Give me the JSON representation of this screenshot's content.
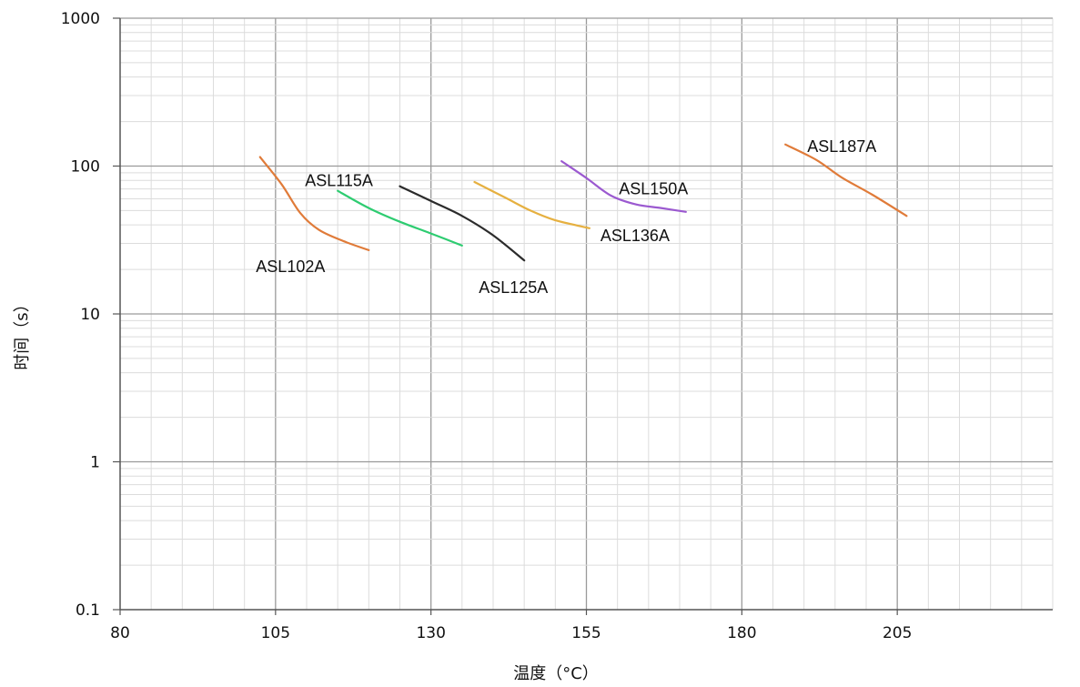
{
  "chart_data": {
    "type": "line",
    "xlabel": "温度（°C）",
    "ylabel": "时间（s）",
    "xlim": [
      80,
      230
    ],
    "ylim": [
      0.1,
      1000
    ],
    "yscale": "log",
    "grid": true,
    "x_ticks": [
      "80",
      "105",
      "130",
      "155",
      "180",
      "205"
    ],
    "y_ticks": [
      "0.1",
      "1",
      "10",
      "100",
      "1000"
    ],
    "series": [
      {
        "name": "ASL102A",
        "color": "#e07b39",
        "points": [
          [
            102.5,
            115
          ],
          [
            106,
            75
          ],
          [
            109,
            48
          ],
          [
            112,
            37
          ],
          [
            116,
            31
          ],
          [
            120,
            27
          ]
        ]
      },
      {
        "name": "ASL115A",
        "color": "#2ecc71",
        "points": [
          [
            115,
            68
          ],
          [
            120,
            52
          ],
          [
            125,
            42
          ],
          [
            130,
            35
          ],
          [
            135,
            29
          ]
        ]
      },
      {
        "name": "ASL125A",
        "color": "#2b2b2b",
        "points": [
          [
            125,
            73
          ],
          [
            130,
            58
          ],
          [
            135,
            46
          ],
          [
            140,
            34
          ],
          [
            145,
            23
          ]
        ]
      },
      {
        "name": "ASL136A",
        "color": "#e6b040",
        "points": [
          [
            137,
            78
          ],
          [
            142,
            61
          ],
          [
            146,
            50
          ],
          [
            150,
            43
          ],
          [
            155.5,
            38
          ]
        ]
      },
      {
        "name": "ASL150A",
        "color": "#9b59d0",
        "points": [
          [
            151,
            108
          ],
          [
            155,
            83
          ],
          [
            159,
            63
          ],
          [
            163,
            55
          ],
          [
            167,
            52
          ],
          [
            171,
            49
          ]
        ]
      },
      {
        "name": "ASL187A",
        "color": "#e07b39",
        "points": [
          [
            187,
            140
          ],
          [
            192,
            110
          ],
          [
            196,
            84
          ],
          [
            201,
            64
          ],
          [
            206.5,
            46
          ]
        ]
      }
    ]
  }
}
